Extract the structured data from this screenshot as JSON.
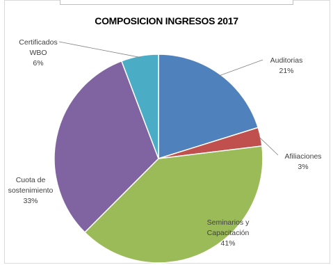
{
  "chart_data": {
    "type": "pie",
    "title": "COMPOSICION INGRESOS 2017",
    "slices": [
      {
        "label_lines": [
          "Auditorias"
        ],
        "pct_label": "21%",
        "value": 21,
        "color": "#4f81bd"
      },
      {
        "label_lines": [
          "Afiliaciones"
        ],
        "pct_label": "3%",
        "value": 3,
        "color": "#c0504d"
      },
      {
        "label_lines": [
          "Seminarios y",
          "Capacitación"
        ],
        "pct_label": "41%",
        "value": 41,
        "color": "#9bbb59"
      },
      {
        "label_lines": [
          "Cuota de",
          "sostenimiento"
        ],
        "pct_label": "33%",
        "value": 33,
        "color": "#8064a2"
      },
      {
        "label_lines": [
          "Certificados",
          "WBO"
        ],
        "pct_label": "6%",
        "value": 6,
        "color": "#4bacc6"
      }
    ]
  }
}
